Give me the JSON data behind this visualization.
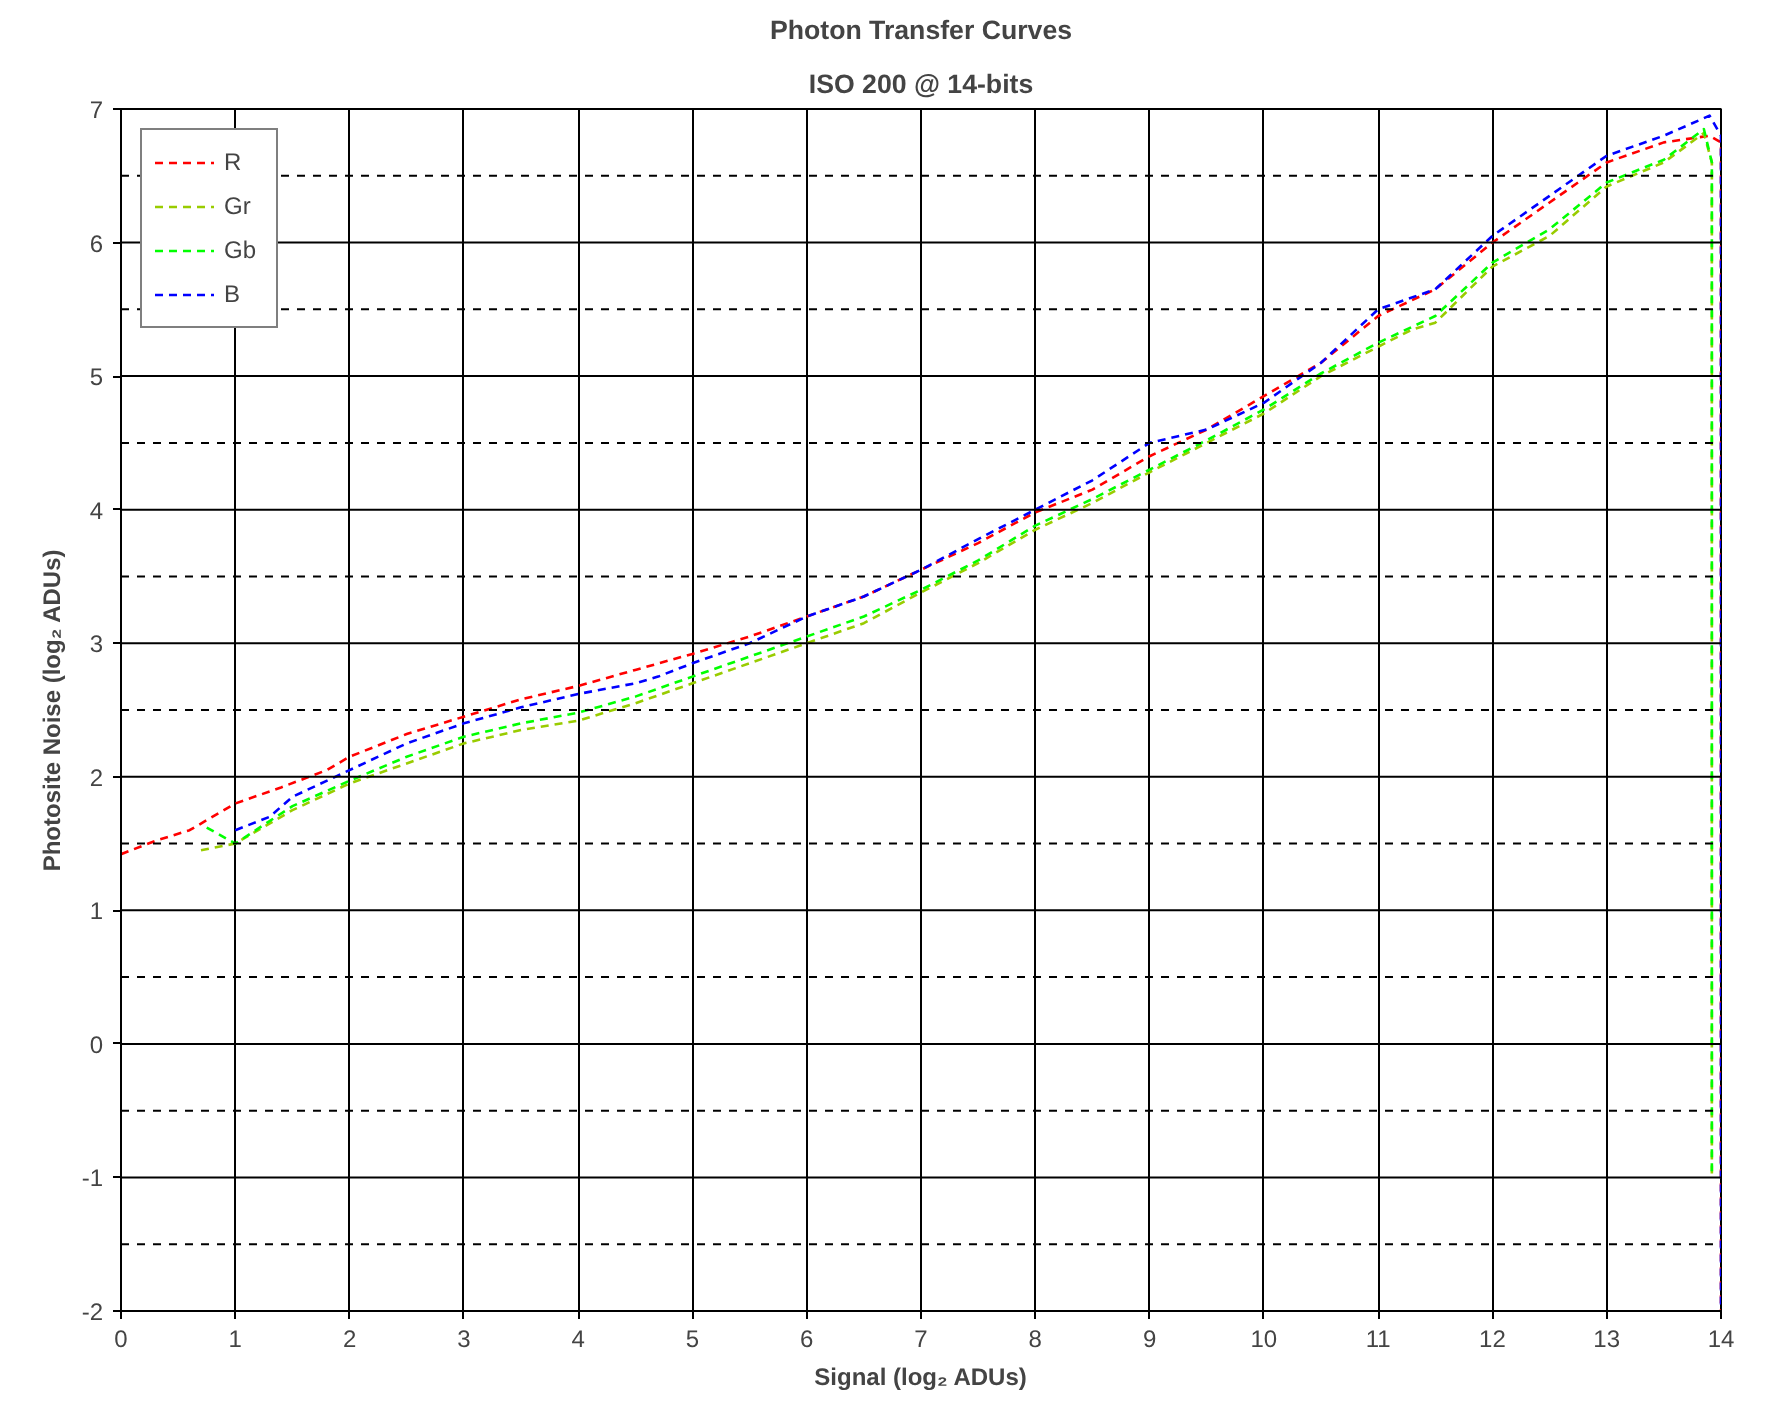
{
  "chart_data": {
    "type": "line",
    "title": "Photon Transfer Curves",
    "subtitle": "ISO 200 @ 14-bits",
    "xlabel": "Signal (log₂ ADUs)",
    "ylabel": "Photosite Noise (log₂ ADUs)",
    "xlim": [
      0,
      14
    ],
    "ylim": [
      -2,
      7
    ],
    "xticks": [
      0,
      1,
      2,
      3,
      4,
      5,
      6,
      7,
      8,
      9,
      10,
      11,
      12,
      13,
      14
    ],
    "yticks": [
      -2,
      {
        "value": -1.5,
        "label": null
      },
      -1,
      {
        "value": -0.5,
        "label": null
      },
      0,
      {
        "value": 0.5,
        "label": null
      },
      1,
      {
        "value": 1.5,
        "label": null
      },
      2,
      {
        "value": 2.5,
        "label": null
      },
      3,
      {
        "value": 3.5,
        "label": null
      },
      4,
      {
        "value": 4.5,
        "label": null
      },
      5,
      {
        "value": 5.5,
        "label": null
      },
      6,
      {
        "value": 6.5,
        "label": null
      },
      7
    ],
    "grid": true,
    "legend": "top left",
    "line_style": "dashed",
    "marker": "none",
    "series": [
      {
        "name": "R",
        "color": "#ff0000",
        "x": [
          0,
          0.3,
          0.6,
          0.9,
          1.0,
          1.4,
          1.8,
          2.0,
          2.5,
          3.0,
          3.5,
          4.0,
          4.5,
          5.0,
          5.5,
          6.0,
          6.5,
          7.0,
          7.5,
          8.0,
          8.5,
          9.0,
          9.5,
          10.0,
          10.5,
          11.0,
          11.5,
          12.0,
          12.5,
          13.0,
          13.5,
          13.9,
          14.0,
          14.0
        ],
        "values": [
          1.42,
          1.52,
          1.6,
          1.75,
          1.8,
          1.92,
          2.05,
          2.15,
          2.32,
          2.45,
          2.58,
          2.68,
          2.8,
          2.92,
          3.05,
          3.2,
          3.35,
          3.55,
          3.75,
          3.98,
          4.15,
          4.4,
          4.6,
          4.85,
          5.1,
          5.45,
          5.65,
          6.0,
          6.3,
          6.6,
          6.75,
          6.8,
          6.75,
          -2
        ]
      },
      {
        "name": "Gr",
        "color": "#99cc00",
        "x": [
          0.7,
          1.0,
          1.5,
          2.0,
          2.5,
          3.0,
          3.5,
          4.0,
          4.5,
          5.0,
          5.5,
          6.0,
          6.5,
          7.0,
          7.5,
          8.0,
          8.5,
          9.0,
          9.5,
          10.0,
          10.5,
          11.0,
          11.3,
          11.5,
          12.0,
          12.5,
          13.0,
          13.5,
          13.85,
          13.92,
          13.92
        ],
        "values": [
          1.45,
          1.5,
          1.75,
          1.95,
          2.1,
          2.25,
          2.35,
          2.42,
          2.55,
          2.7,
          2.85,
          3.0,
          3.15,
          3.38,
          3.6,
          3.85,
          4.05,
          4.28,
          4.5,
          4.72,
          5.0,
          5.22,
          5.35,
          5.4,
          5.82,
          6.05,
          6.42,
          6.6,
          6.82,
          6.6,
          -1
        ]
      },
      {
        "name": "Gb",
        "color": "#00ff00",
        "x": [
          0.75,
          1.0,
          1.5,
          2.0,
          2.5,
          3.0,
          3.5,
          4.0,
          4.5,
          5.0,
          5.5,
          6.0,
          6.5,
          7.0,
          7.5,
          8.0,
          8.5,
          9.0,
          9.5,
          10.0,
          10.5,
          11.0,
          11.5,
          12.0,
          12.5,
          13.0,
          13.5,
          13.85,
          13.92,
          13.92
        ],
        "values": [
          1.62,
          1.5,
          1.78,
          1.97,
          2.15,
          2.3,
          2.4,
          2.48,
          2.6,
          2.75,
          2.9,
          3.05,
          3.2,
          3.4,
          3.62,
          3.88,
          4.08,
          4.3,
          4.52,
          4.75,
          5.02,
          5.25,
          5.45,
          5.85,
          6.1,
          6.45,
          6.62,
          6.85,
          6.6,
          -1
        ]
      },
      {
        "name": "B",
        "color": "#0000ff",
        "x": [
          1.0,
          1.3,
          1.5,
          2.0,
          2.5,
          3.0,
          3.5,
          4.0,
          4.5,
          4.7,
          5.0,
          5.5,
          6.0,
          6.5,
          7.0,
          7.5,
          8.0,
          8.5,
          9.0,
          9.5,
          10.0,
          10.5,
          11.0,
          11.5,
          12.0,
          12.5,
          13.0,
          13.5,
          13.9,
          14.0,
          14.0
        ],
        "values": [
          1.6,
          1.7,
          1.85,
          2.05,
          2.25,
          2.4,
          2.52,
          2.62,
          2.7,
          2.75,
          2.85,
          3.0,
          3.2,
          3.35,
          3.55,
          3.78,
          4.0,
          4.22,
          4.5,
          4.6,
          4.8,
          5.1,
          5.5,
          5.65,
          6.05,
          6.35,
          6.65,
          6.8,
          6.95,
          6.8,
          -2
        ]
      }
    ]
  }
}
